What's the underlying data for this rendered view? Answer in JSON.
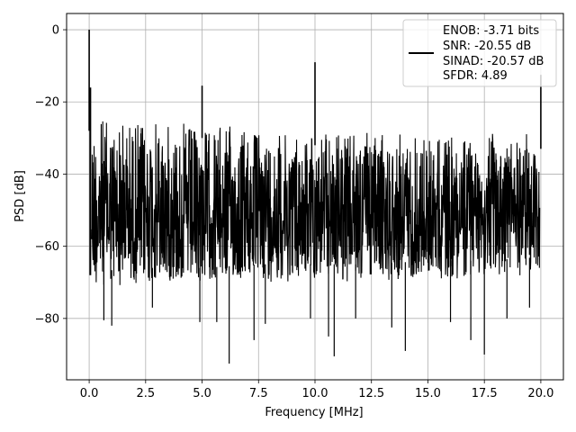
{
  "chart_data": {
    "type": "line",
    "xlabel": "Frequency [MHz]",
    "ylabel": "PSD [dB]",
    "xlim": [
      -1.0,
      21.0
    ],
    "ylim": [
      -97,
      4.5
    ],
    "x_ticks": [
      0.0,
      2.5,
      5.0,
      7.5,
      10.0,
      12.5,
      15.0,
      17.5,
      20.0
    ],
    "x_tick_labels": [
      "0.0",
      "2.5",
      "5.0",
      "7.5",
      "10.0",
      "12.5",
      "15.0",
      "17.5",
      "20.0"
    ],
    "y_ticks": [
      0,
      -20,
      -40,
      -60,
      -80
    ],
    "y_tick_labels": [
      "0",
      "−20",
      "−40",
      "−60",
      "−80"
    ],
    "grid": true,
    "legend": {
      "placement": "top-right",
      "lines": [
        "ENOB: -3.71 bits",
        "SNR: -20.55 dB",
        "SINAD: -20.57 dB",
        "SFDR: 4.89"
      ]
    },
    "series": [
      {
        "color": "#000000",
        "noise_envelope": {
          "x": [
            0.1,
            2.5,
            5.0,
            7.5,
            10.0,
            12.5,
            15.0,
            17.5,
            19.95
          ],
          "upper": [
            -24,
            -25,
            -26,
            -27,
            -28,
            -28.5,
            -29,
            -29,
            -29
          ],
          "lower": [
            -71,
            -70,
            -70,
            -69,
            -69,
            -69,
            -68,
            -68,
            -67
          ]
        },
        "peaks": [
          {
            "x": 0.0,
            "y": 0.0
          },
          {
            "x": 5.0,
            "y": -15.5
          },
          {
            "x": 10.0,
            "y": -9.0
          },
          {
            "x": 20.0,
            "y": -12.5
          }
        ],
        "dips": [
          {
            "x": 0.65,
            "y": -80.5
          },
          {
            "x": 1.0,
            "y": -82
          },
          {
            "x": 2.8,
            "y": -77
          },
          {
            "x": 4.9,
            "y": -81
          },
          {
            "x": 5.65,
            "y": -81
          },
          {
            "x": 6.2,
            "y": -92.5
          },
          {
            "x": 7.3,
            "y": -86
          },
          {
            "x": 7.8,
            "y": -81.5
          },
          {
            "x": 9.8,
            "y": -80
          },
          {
            "x": 10.6,
            "y": -85
          },
          {
            "x": 10.85,
            "y": -90.5
          },
          {
            "x": 11.8,
            "y": -80
          },
          {
            "x": 13.4,
            "y": -82.5
          },
          {
            "x": 14.0,
            "y": -89
          },
          {
            "x": 16.0,
            "y": -81
          },
          {
            "x": 16.9,
            "y": -86
          },
          {
            "x": 17.5,
            "y": -90
          },
          {
            "x": 18.5,
            "y": -80
          },
          {
            "x": 19.5,
            "y": -77
          }
        ]
      }
    ]
  }
}
